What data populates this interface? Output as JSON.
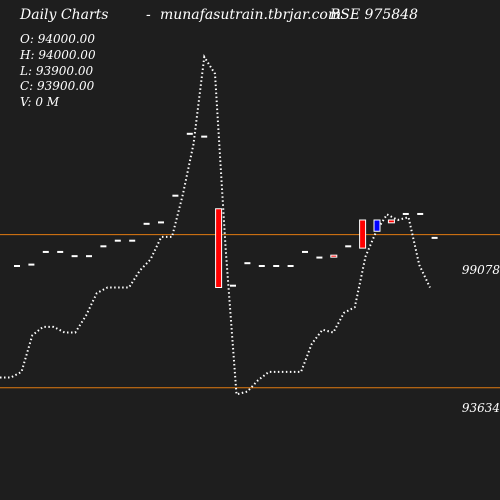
{
  "header": {
    "title": "Daily Charts",
    "separator": "-",
    "site": "munafasutrain.tbrjar.com",
    "symbol": "BSE 975848"
  },
  "ohlc": {
    "open": "O: 94000.00",
    "high": "H: 94000.00",
    "low": "L: 93900.00",
    "close": "C: 93900.00",
    "volume": "V: 0  M"
  },
  "levels": [
    {
      "label": "99078",
      "color": "#e07a10"
    },
    {
      "label": "93634",
      "color": "#e07a10"
    }
  ],
  "colors": {
    "background": "#1e1e1e",
    "text": "#ffffff",
    "up": "#0000ff",
    "down": "#ff0000",
    "neutral": "#ffffff",
    "dotted_line": "#ffffff"
  },
  "chart_data": {
    "type": "line",
    "ylim": [
      90000,
      106000
    ],
    "reference_lines": [
      99078,
      93634
    ],
    "candles": [
      {
        "o": 98000,
        "h": 98000,
        "l": 97950,
        "c": 97950,
        "dir": "flat"
      },
      {
        "o": 98050,
        "h": 98050,
        "l": 98000,
        "c": 98000,
        "dir": "flat"
      },
      {
        "o": 98500,
        "h": 98500,
        "l": 98450,
        "c": 98450,
        "dir": "flat"
      },
      {
        "o": 98500,
        "h": 98500,
        "l": 98450,
        "c": 98450,
        "dir": "flat"
      },
      {
        "o": 98350,
        "h": 98350,
        "l": 98300,
        "c": 98300,
        "dir": "flat"
      },
      {
        "o": 98350,
        "h": 98350,
        "l": 98300,
        "c": 98300,
        "dir": "flat"
      },
      {
        "o": 98700,
        "h": 98700,
        "l": 98650,
        "c": 98650,
        "dir": "flat"
      },
      {
        "o": 98900,
        "h": 98900,
        "l": 98850,
        "c": 98850,
        "dir": "flat"
      },
      {
        "o": 98900,
        "h": 98900,
        "l": 98850,
        "c": 98850,
        "dir": "flat"
      },
      {
        "o": 99500,
        "h": 99500,
        "l": 99450,
        "c": 99450,
        "dir": "flat"
      },
      {
        "o": 99550,
        "h": 99550,
        "l": 99500,
        "c": 99500,
        "dir": "flat"
      },
      {
        "o": 100500,
        "h": 100500,
        "l": 100450,
        "c": 100450,
        "dir": "flat"
      },
      {
        "o": 102700,
        "h": 102700,
        "l": 102650,
        "c": 102650,
        "dir": "flat"
      },
      {
        "o": 102600,
        "h": 102600,
        "l": 102550,
        "c": 102550,
        "dir": "flat"
      },
      {
        "o": 100000,
        "h": 100000,
        "l": 97200,
        "c": 97200,
        "dir": "down"
      },
      {
        "o": 97300,
        "h": 97300,
        "l": 97250,
        "c": 97250,
        "dir": "flat"
      },
      {
        "o": 98100,
        "h": 98100,
        "l": 98050,
        "c": 98050,
        "dir": "flat"
      },
      {
        "o": 98000,
        "h": 98000,
        "l": 97950,
        "c": 97950,
        "dir": "flat"
      },
      {
        "o": 98000,
        "h": 98000,
        "l": 97950,
        "c": 97950,
        "dir": "flat"
      },
      {
        "o": 98000,
        "h": 98000,
        "l": 97950,
        "c": 97950,
        "dir": "flat"
      },
      {
        "o": 98500,
        "h": 98500,
        "l": 98450,
        "c": 98450,
        "dir": "flat"
      },
      {
        "o": 98300,
        "h": 98300,
        "l": 98250,
        "c": 98250,
        "dir": "flat"
      },
      {
        "o": 98350,
        "h": 98350,
        "l": 98300,
        "c": 98300,
        "dir": "down"
      },
      {
        "o": 98700,
        "h": 98700,
        "l": 98650,
        "c": 98650,
        "dir": "flat"
      },
      {
        "o": 99600,
        "h": 99600,
        "l": 98600,
        "c": 98600,
        "dir": "down"
      },
      {
        "o": 99200,
        "h": 99600,
        "l": 99200,
        "c": 99600,
        "dir": "up"
      },
      {
        "o": 99600,
        "h": 99600,
        "l": 99500,
        "c": 99500,
        "dir": "down"
      },
      {
        "o": 99850,
        "h": 99850,
        "l": 99800,
        "c": 99800,
        "dir": "flat"
      },
      {
        "o": 99850,
        "h": 99850,
        "l": 99800,
        "c": 99800,
        "dir": "flat"
      },
      {
        "o": 99000,
        "h": 99000,
        "l": 98950,
        "c": 98950,
        "dir": "flat"
      }
    ],
    "line": [
      94000,
      94000,
      94200,
      95500,
      95800,
      95800,
      95600,
      95600,
      96200,
      97000,
      97200,
      97200,
      97200,
      97800,
      98200,
      99000,
      99000,
      100500,
      102300,
      105400,
      104800,
      98500,
      93400,
      93500,
      93900,
      94200,
      94200,
      94200,
      94200,
      95200,
      95700,
      95600,
      96300,
      96500,
      98300,
      99200,
      99800,
      99600,
      99700,
      98000,
      97200
    ]
  }
}
